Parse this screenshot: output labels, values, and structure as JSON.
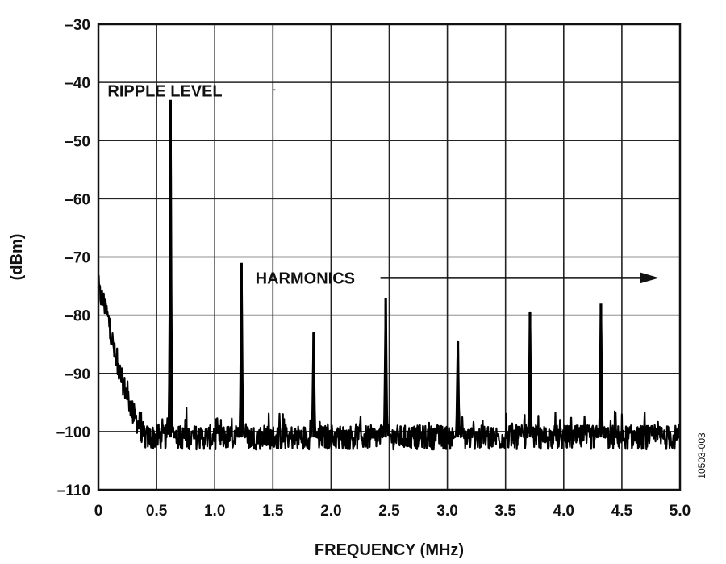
{
  "chart_data": {
    "type": "line",
    "title": "",
    "xlabel": "FREQUENCY (MHz)",
    "ylabel": "(dBm)",
    "xlim": [
      0,
      5.0
    ],
    "ylim": [
      -110,
      -30
    ],
    "x_ticks": [
      0,
      0.5,
      1.0,
      1.5,
      2.0,
      2.5,
      3.0,
      3.5,
      4.0,
      4.5,
      5.0
    ],
    "x_tick_labels": [
      "0",
      "0.5",
      "1.0",
      "1.5",
      "2.0",
      "2.5",
      "3.0",
      "3.5",
      "4.0",
      "4.5",
      "5.0"
    ],
    "y_ticks": [
      -30,
      -40,
      -50,
      -60,
      -70,
      -80,
      -90,
      -100,
      -110
    ],
    "y_tick_labels": [
      "–30",
      "–40",
      "–50",
      "–60",
      "–70",
      "–80",
      "–90",
      "–100",
      "–110"
    ],
    "grid": true,
    "series_color": "#000000",
    "noise_floor": -101,
    "low_freq_rolloff": [
      {
        "x": 0.0,
        "y": -76
      },
      {
        "x": 0.05,
        "y": -78
      },
      {
        "x": 0.1,
        "y": -82
      },
      {
        "x": 0.15,
        "y": -88
      },
      {
        "x": 0.2,
        "y": -91
      },
      {
        "x": 0.25,
        "y": -94
      },
      {
        "x": 0.3,
        "y": -97
      },
      {
        "x": 0.35,
        "y": -99
      },
      {
        "x": 0.4,
        "y": -101
      }
    ],
    "peaks": [
      {
        "x": 0.62,
        "y": -43
      },
      {
        "x": 1.23,
        "y": -71
      },
      {
        "x": 1.85,
        "y": -83
      },
      {
        "x": 2.47,
        "y": -77
      },
      {
        "x": 3.09,
        "y": -84.5
      },
      {
        "x": 3.71,
        "y": -79.5
      },
      {
        "x": 4.32,
        "y": -78
      }
    ],
    "annotations": [
      {
        "text": "RIPPLE LEVEL",
        "x": 0.1,
        "y": -41
      },
      {
        "text": "HARMONICS",
        "x": 1.35,
        "y": -74,
        "arrow_to_x": 4.82
      }
    ],
    "figure_id": "10503-003"
  }
}
